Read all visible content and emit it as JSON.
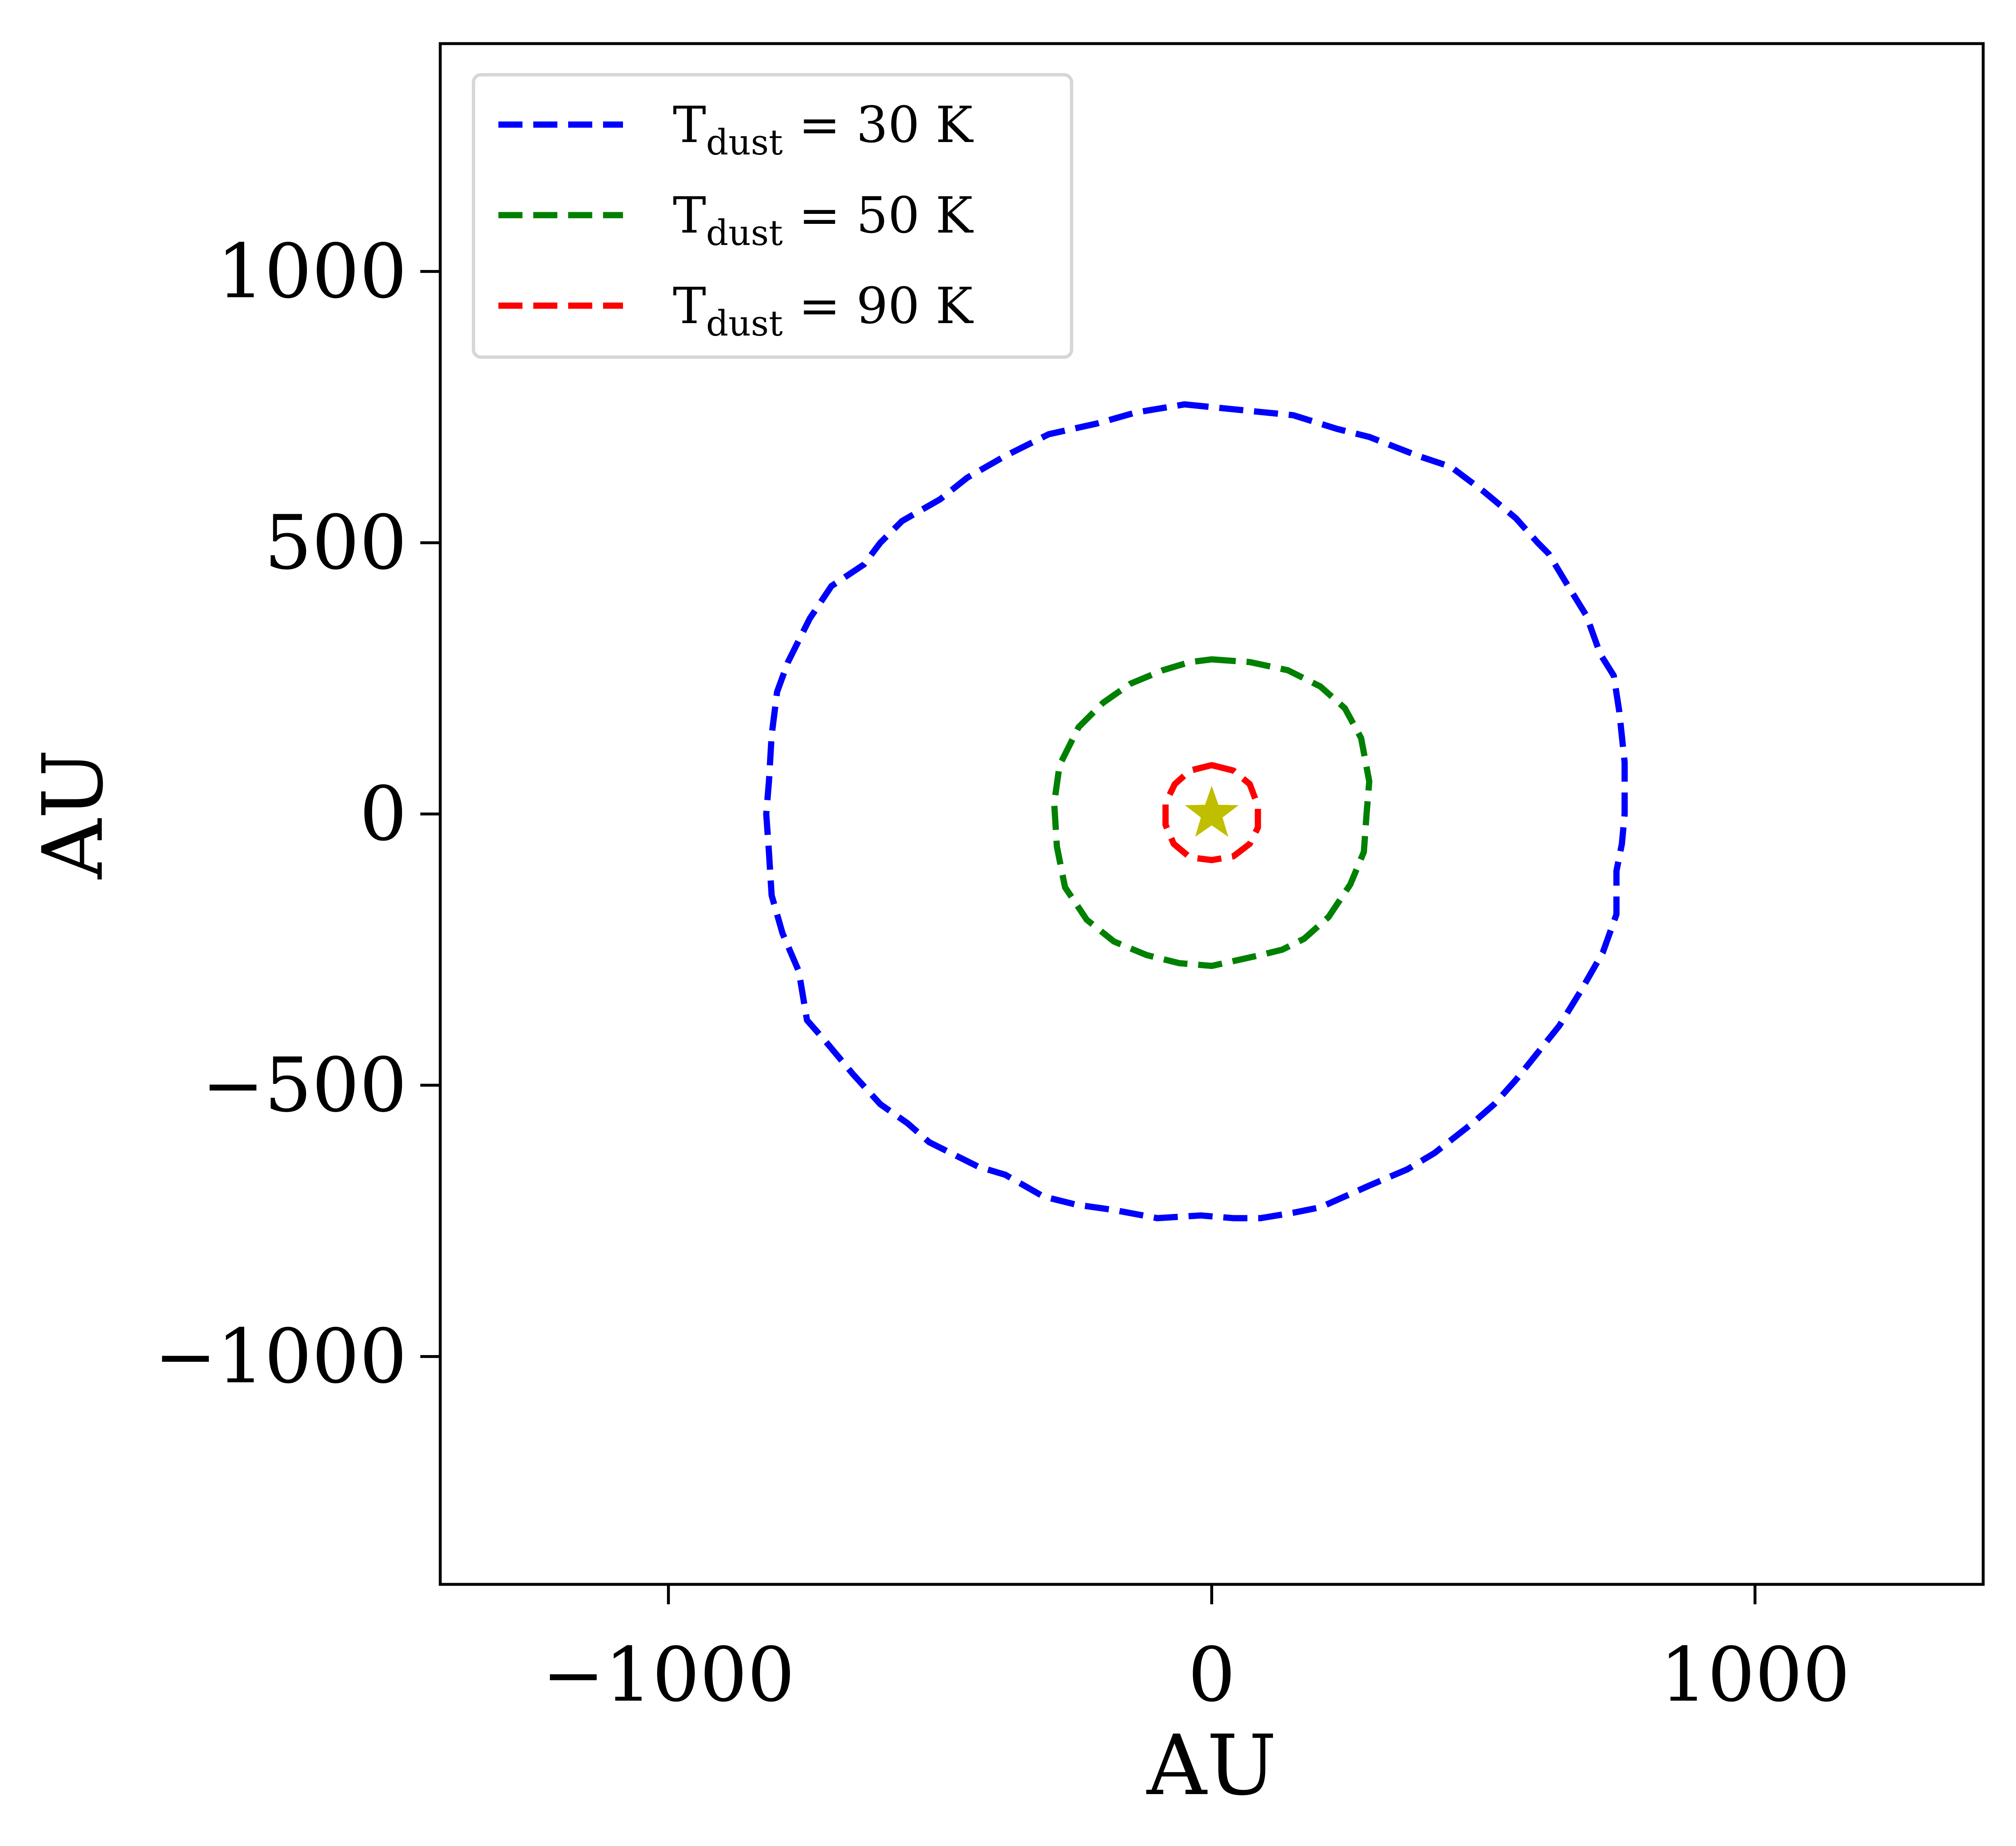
{
  "chart_data": {
    "type": "line",
    "title": "",
    "xlabel": "AU",
    "ylabel": "AU",
    "xlim": [
      -1420,
      1420
    ],
    "ylim": [
      -1420,
      1420
    ],
    "xticks": [
      -1000,
      0,
      1000
    ],
    "yticks": [
      -1000,
      -500,
      0,
      500,
      1000
    ],
    "xtick_labels": [
      "−1000",
      "0",
      "1000"
    ],
    "ytick_labels": [
      "−1000",
      "−500",
      "0",
      "500",
      "1000"
    ],
    "grid": false,
    "legend_position": "top-left",
    "line_style": "dashed",
    "series": [
      {
        "name": "Tdust = 30 K",
        "legend": {
          "base": "T",
          "sub": "dust",
          "rest": " = 30 K"
        },
        "color": "#0000ff",
        "points": [
          [
            -50,
            755
          ],
          [
            50,
            745
          ],
          [
            150,
            735
          ],
          [
            230,
            710
          ],
          [
            290,
            695
          ],
          [
            380,
            660
          ],
          [
            440,
            640
          ],
          [
            500,
            595
          ],
          [
            560,
            545
          ],
          [
            600,
            500
          ],
          [
            620,
            480
          ],
          [
            650,
            430
          ],
          [
            690,
            365
          ],
          [
            715,
            295
          ],
          [
            740,
            255
          ],
          [
            750,
            190
          ],
          [
            760,
            95
          ],
          [
            760,
            0
          ],
          [
            755,
            -55
          ],
          [
            745,
            -105
          ],
          [
            745,
            -185
          ],
          [
            720,
            -255
          ],
          [
            680,
            -325
          ],
          [
            640,
            -390
          ],
          [
            600,
            -440
          ],
          [
            560,
            -490
          ],
          [
            520,
            -535
          ],
          [
            480,
            -570
          ],
          [
            410,
            -625
          ],
          [
            360,
            -655
          ],
          [
            290,
            -685
          ],
          [
            200,
            -725
          ],
          [
            150,
            -735
          ],
          [
            90,
            -745
          ],
          [
            40,
            -745
          ],
          [
            -20,
            -740
          ],
          [
            -100,
            -745
          ],
          [
            -180,
            -730
          ],
          [
            -250,
            -720
          ],
          [
            -310,
            -705
          ],
          [
            -380,
            -665
          ],
          [
            -430,
            -650
          ],
          [
            -480,
            -625
          ],
          [
            -520,
            -605
          ],
          [
            -560,
            -570
          ],
          [
            -610,
            -535
          ],
          [
            -660,
            -480
          ],
          [
            -710,
            -420
          ],
          [
            -745,
            -380
          ],
          [
            -760,
            -290
          ],
          [
            -790,
            -220
          ],
          [
            -810,
            -150
          ],
          [
            -815,
            -70
          ],
          [
            -820,
            0
          ],
          [
            -815,
            60
          ],
          [
            -810,
            145
          ],
          [
            -800,
            225
          ],
          [
            -780,
            280
          ],
          [
            -740,
            360
          ],
          [
            -700,
            420
          ],
          [
            -640,
            460
          ],
          [
            -610,
            500
          ],
          [
            -570,
            540
          ],
          [
            -500,
            580
          ],
          [
            -450,
            620
          ],
          [
            -380,
            660
          ],
          [
            -300,
            700
          ],
          [
            -210,
            720
          ],
          [
            -140,
            740
          ]
        ]
      },
      {
        "name": "Tdust = 50 K",
        "legend": {
          "base": "T",
          "sub": "dust",
          "rest": " = 50 K"
        },
        "color": "#008000",
        "points": [
          [
            0,
            285
          ],
          [
            70,
            280
          ],
          [
            140,
            265
          ],
          [
            200,
            235
          ],
          [
            245,
            195
          ],
          [
            275,
            140
          ],
          [
            290,
            60
          ],
          [
            285,
            0
          ],
          [
            280,
            -70
          ],
          [
            255,
            -130
          ],
          [
            215,
            -190
          ],
          [
            170,
            -230
          ],
          [
            130,
            -250
          ],
          [
            90,
            -260
          ],
          [
            0,
            -280
          ],
          [
            -60,
            -275
          ],
          [
            -120,
            -260
          ],
          [
            -180,
            -235
          ],
          [
            -230,
            -195
          ],
          [
            -270,
            -135
          ],
          [
            -285,
            -60
          ],
          [
            -290,
            20
          ],
          [
            -280,
            90
          ],
          [
            -245,
            160
          ],
          [
            -200,
            205
          ],
          [
            -150,
            240
          ],
          [
            -90,
            265
          ],
          [
            -40,
            280
          ]
        ]
      },
      {
        "name": "Tdust = 90 K",
        "legend": {
          "base": "T",
          "sub": "dust",
          "rest": " = 90 K"
        },
        "color": "#ff0000",
        "points": [
          [
            0,
            90
          ],
          [
            40,
            80
          ],
          [
            70,
            55
          ],
          [
            85,
            15
          ],
          [
            85,
            -25
          ],
          [
            70,
            -55
          ],
          [
            40,
            -78
          ],
          [
            0,
            -85
          ],
          [
            -40,
            -80
          ],
          [
            -70,
            -55
          ],
          [
            -85,
            -20
          ],
          [
            -85,
            20
          ],
          [
            -68,
            55
          ],
          [
            -40,
            80
          ]
        ]
      }
    ],
    "markers": [
      {
        "name": "star",
        "x": 0,
        "y": 0,
        "color": "#bfbf00"
      }
    ]
  }
}
